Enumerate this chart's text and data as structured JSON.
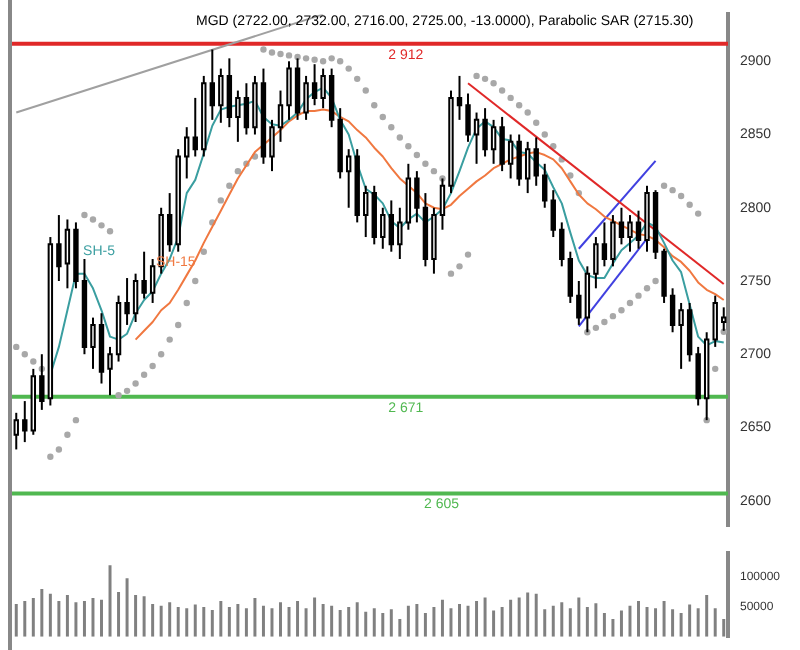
{
  "chart_data": [
    {
      "type": "candlestick",
      "title": "MGD (2722.00, 2732.00, 2716.00, 2725.00, -13.0000), Parabolic SAR (2715.30)",
      "categories": [
        null,
        null,
        null,
        null,
        null,
        null,
        null,
        null,
        null,
        null,
        null,
        null,
        null,
        null,
        null,
        null,
        null,
        null,
        null,
        null,
        null,
        null,
        null,
        null,
        null,
        null,
        null,
        null,
        null,
        null,
        null,
        null,
        null,
        null,
        null,
        null,
        null,
        null,
        null,
        null,
        null,
        null,
        null,
        null,
        null,
        null,
        null,
        null,
        null,
        null,
        null,
        null,
        null,
        null,
        null,
        null,
        null,
        null,
        null,
        null,
        null,
        null,
        null,
        null,
        null,
        null,
        null,
        null,
        null,
        null,
        null,
        null,
        null,
        null,
        null,
        null,
        null,
        null,
        null,
        null,
        null,
        null,
        null,
        null
      ],
      "ohlc": [
        [
          2645,
          2660,
          2635,
          2655
        ],
        [
          2655,
          2668,
          2640,
          2648
        ],
        [
          2648,
          2690,
          2645,
          2685
        ],
        [
          2685,
          2700,
          2662,
          2668
        ],
        [
          2670,
          2780,
          2665,
          2775
        ],
        [
          2775,
          2795,
          2750,
          2760
        ],
        [
          2762,
          2792,
          2745,
          2785
        ],
        [
          2785,
          2790,
          2745,
          2750
        ],
        [
          2750,
          2765,
          2700,
          2705
        ],
        [
          2705,
          2725,
          2690,
          2720
        ],
        [
          2720,
          2728,
          2680,
          2688
        ],
        [
          2690,
          2705,
          2672,
          2700
        ],
        [
          2700,
          2740,
          2695,
          2735
        ],
        [
          2735,
          2752,
          2720,
          2728
        ],
        [
          2728,
          2755,
          2722,
          2750
        ],
        [
          2750,
          2770,
          2738,
          2742
        ],
        [
          2742,
          2765,
          2735,
          2760
        ],
        [
          2760,
          2800,
          2755,
          2795
        ],
        [
          2795,
          2810,
          2770,
          2775
        ],
        [
          2775,
          2840,
          2770,
          2835
        ],
        [
          2835,
          2855,
          2820,
          2848
        ],
        [
          2848,
          2875,
          2835,
          2840
        ],
        [
          2840,
          2890,
          2835,
          2885
        ],
        [
          2885,
          2908,
          2860,
          2870
        ],
        [
          2870,
          2895,
          2858,
          2890
        ],
        [
          2890,
          2902,
          2855,
          2862
        ],
        [
          2862,
          2880,
          2845,
          2875
        ],
        [
          2875,
          2885,
          2850,
          2855
        ],
        [
          2855,
          2890,
          2850,
          2885
        ],
        [
          2885,
          2895,
          2830,
          2835
        ],
        [
          2835,
          2860,
          2825,
          2855
        ],
        [
          2855,
          2880,
          2845,
          2870
        ],
        [
          2870,
          2900,
          2860,
          2895
        ],
        [
          2895,
          2902,
          2860,
          2865
        ],
        [
          2865,
          2890,
          2860,
          2885
        ],
        [
          2885,
          2898,
          2870,
          2875
        ],
        [
          2875,
          2895,
          2868,
          2890
        ],
        [
          2890,
          2895,
          2855,
          2860
        ],
        [
          2860,
          2868,
          2820,
          2825
        ],
        [
          2825,
          2840,
          2800,
          2835
        ],
        [
          2835,
          2840,
          2790,
          2795
        ],
        [
          2795,
          2815,
          2780,
          2810
        ],
        [
          2810,
          2815,
          2775,
          2780
        ],
        [
          2780,
          2800,
          2772,
          2795
        ],
        [
          2795,
          2805,
          2770,
          2775
        ],
        [
          2775,
          2800,
          2765,
          2790
        ],
        [
          2790,
          2830,
          2785,
          2820
        ],
        [
          2820,
          2825,
          2790,
          2800
        ],
        [
          2800,
          2810,
          2760,
          2765
        ],
        [
          2765,
          2800,
          2755,
          2795
        ],
        [
          2795,
          2820,
          2785,
          2815
        ],
        [
          2815,
          2880,
          2810,
          2875
        ],
        [
          2875,
          2890,
          2860,
          2870
        ],
        [
          2870,
          2878,
          2845,
          2850
        ],
        [
          2850,
          2865,
          2830,
          2860
        ],
        [
          2860,
          2868,
          2835,
          2840
        ],
        [
          2840,
          2860,
          2830,
          2855
        ],
        [
          2855,
          2862,
          2825,
          2830
        ],
        [
          2830,
          2850,
          2820,
          2845
        ],
        [
          2845,
          2850,
          2815,
          2820
        ],
        [
          2820,
          2845,
          2810,
          2840
        ],
        [
          2840,
          2848,
          2815,
          2822
        ],
        [
          2822,
          2830,
          2800,
          2805
        ],
        [
          2805,
          2812,
          2780,
          2785
        ],
        [
          2785,
          2790,
          2760,
          2765
        ],
        [
          2765,
          2770,
          2735,
          2740
        ],
        [
          2740,
          2750,
          2720,
          2725
        ],
        [
          2725,
          2760,
          2715,
          2755
        ],
        [
          2755,
          2780,
          2745,
          2775
        ],
        [
          2775,
          2790,
          2760,
          2765
        ],
        [
          2765,
          2795,
          2760,
          2790
        ],
        [
          2790,
          2800,
          2775,
          2780
        ],
        [
          2780,
          2795,
          2770,
          2790
        ],
        [
          2790,
          2798,
          2772,
          2778
        ],
        [
          2778,
          2815,
          2770,
          2810
        ],
        [
          2810,
          2812,
          2765,
          2770
        ],
        [
          2770,
          2772,
          2735,
          2740
        ],
        [
          2740,
          2745,
          2715,
          2720
        ],
        [
          2720,
          2735,
          2690,
          2730
        ],
        [
          2730,
          2735,
          2695,
          2700
        ],
        [
          2700,
          2705,
          2665,
          2670
        ],
        [
          2670,
          2715,
          2655,
          2710
        ],
        [
          2710,
          2740,
          2705,
          2735
        ],
        [
          2722,
          2732,
          2716,
          2725
        ]
      ],
      "series": [
        {
          "type": "line",
          "name": "SH-5",
          "color": "#3a9ea0",
          "values": [
            null,
            null,
            null,
            null,
            2686,
            2705,
            2730,
            2755,
            2755,
            2745,
            2730,
            2712,
            2710,
            2714,
            2728,
            2737,
            2743,
            2755,
            2765,
            2780,
            2810,
            2819,
            2837,
            2856,
            2867,
            2869,
            2870,
            2871,
            2873,
            2862,
            2857,
            2856,
            2860,
            2865,
            2874,
            2879,
            2882,
            2875,
            2860,
            2850,
            2830,
            2813,
            2809,
            2803,
            2791,
            2786,
            2792,
            2796,
            2790,
            2794,
            2799,
            2810,
            2825,
            2841,
            2854,
            2859,
            2855,
            2847,
            2846,
            2838,
            2837,
            2831,
            2826,
            2814,
            2803,
            2783,
            2764,
            2754,
            2752,
            2752,
            2762,
            2771,
            2776,
            2781,
            2790,
            2787,
            2776,
            2764,
            2756,
            2734,
            2712,
            2706,
            2709,
            2708
          ]
        },
        {
          "type": "line",
          "name": "SH-15",
          "color": "#f07840",
          "values": [
            null,
            null,
            null,
            null,
            null,
            null,
            null,
            null,
            null,
            null,
            null,
            null,
            null,
            null,
            2710,
            2716,
            2722,
            2730,
            2735,
            2744,
            2754,
            2764,
            2776,
            2787,
            2798,
            2809,
            2820,
            2829,
            2838,
            2843,
            2848,
            2853,
            2859,
            2863,
            2866,
            2866,
            2867,
            2866,
            2862,
            2859,
            2853,
            2848,
            2841,
            2835,
            2827,
            2820,
            2815,
            2810,
            2803,
            2800,
            2799,
            2802,
            2808,
            2813,
            2818,
            2822,
            2827,
            2830,
            2833,
            2835,
            2837,
            2838,
            2836,
            2833,
            2827,
            2818,
            2809,
            2803,
            2799,
            2794,
            2791,
            2788,
            2785,
            2782,
            2781,
            2778,
            2773,
            2767,
            2763,
            2757,
            2749,
            2744,
            2741,
            2737
          ]
        },
        {
          "type": "scatter",
          "color": "#a8a8a8",
          "marker": "circle",
          "values": [
            2705,
            2700,
            2695,
            2690,
            2630,
            2635,
            2645,
            2655,
            2795,
            2792,
            2788,
            2784,
            2672,
            2675,
            2680,
            2686,
            2692,
            2700,
            2710,
            2720,
            2735,
            2750,
            2770,
            2790,
            2805,
            2815,
            2825,
            2830,
            2835,
            2908,
            2906,
            2905,
            2904,
            2903,
            2902,
            2901,
            2900,
            2902,
            2900,
            2895,
            2888,
            2880,
            2870,
            2862,
            2855,
            2848,
            2842,
            2836,
            2830,
            2825,
            2820,
            2755,
            2760,
            2768,
            2890,
            2888,
            2885,
            2880,
            2875,
            2870,
            2865,
            2858,
            2850,
            2842,
            2833,
            2822,
            2810,
            2715,
            2718,
            2722,
            2726,
            2730,
            2735,
            2740,
            2745,
            2750,
            2815,
            2812,
            2808,
            2802,
            2796,
            2655,
            2690,
            2715.3
          ]
        },
        {
          "type": "line",
          "color": "#a0a0a0",
          "values": [
            2865,
            null,
            null,
            null,
            null,
            null,
            null,
            null,
            null,
            null,
            null,
            null,
            null,
            null,
            null,
            null,
            null,
            null,
            null,
            null,
            null,
            null,
            null,
            null,
            null,
            null,
            null,
            null,
            null,
            null,
            null,
            null,
            null,
            null,
            null,
            null,
            2932,
            null,
            null,
            null,
            null,
            null,
            null,
            null,
            null,
            null,
            null,
            null,
            null,
            null,
            null,
            null,
            null,
            null,
            null,
            null,
            null,
            null,
            null,
            null,
            null,
            null,
            null,
            null,
            null,
            null,
            null,
            null,
            null,
            null,
            null,
            null,
            null,
            null,
            null,
            null,
            null,
            null,
            null,
            null,
            null,
            null,
            null,
            null
          ]
        },
        {
          "type": "line",
          "color": "#e02828",
          "values": [
            null,
            null,
            null,
            null,
            null,
            null,
            null,
            null,
            null,
            null,
            null,
            null,
            null,
            null,
            null,
            null,
            null,
            null,
            null,
            null,
            null,
            null,
            null,
            null,
            null,
            null,
            null,
            null,
            null,
            null,
            null,
            null,
            null,
            null,
            null,
            null,
            null,
            null,
            null,
            null,
            null,
            null,
            null,
            null,
            null,
            null,
            null,
            null,
            null,
            null,
            null,
            null,
            null,
            2885,
            null,
            null,
            null,
            null,
            null,
            null,
            null,
            null,
            null,
            null,
            null,
            null,
            null,
            null,
            null,
            null,
            null,
            null,
            null,
            null,
            null,
            null,
            null,
            null,
            null,
            null,
            null,
            null,
            null,
            2748
          ]
        },
        {
          "type": "line",
          "color": "#4040e0",
          "values": [
            null,
            null,
            null,
            null,
            null,
            null,
            null,
            null,
            null,
            null,
            null,
            null,
            null,
            null,
            null,
            null,
            null,
            null,
            null,
            null,
            null,
            null,
            null,
            null,
            null,
            null,
            null,
            null,
            null,
            null,
            null,
            null,
            null,
            null,
            null,
            null,
            null,
            null,
            null,
            null,
            null,
            null,
            null,
            null,
            null,
            null,
            null,
            null,
            null,
            null,
            null,
            null,
            null,
            null,
            null,
            null,
            null,
            null,
            null,
            null,
            null,
            null,
            null,
            null,
            null,
            null,
            2772,
            null,
            null,
            null,
            null,
            null,
            null,
            null,
            null,
            2832,
            null,
            null,
            null,
            null,
            null,
            null,
            null,
            null
          ]
        },
        {
          "type": "line",
          "color": "#4040e0",
          "values": [
            null,
            null,
            null,
            null,
            null,
            null,
            null,
            null,
            null,
            null,
            null,
            null,
            null,
            null,
            null,
            null,
            null,
            null,
            null,
            null,
            null,
            null,
            null,
            null,
            null,
            null,
            null,
            null,
            null,
            null,
            null,
            null,
            null,
            null,
            null,
            null,
            null,
            null,
            null,
            null,
            null,
            null,
            null,
            null,
            null,
            null,
            null,
            null,
            null,
            null,
            null,
            null,
            null,
            null,
            null,
            null,
            null,
            null,
            null,
            null,
            null,
            null,
            null,
            null,
            null,
            null,
            2719,
            null,
            null,
            null,
            null,
            null,
            null,
            null,
            2779,
            null,
            null,
            null,
            null,
            null,
            null,
            null,
            null,
            null
          ]
        }
      ],
      "ylim": [
        2583,
        2932
      ],
      "yticks": [
        2600,
        2650,
        2700,
        2750,
        2800,
        2850,
        2900
      ],
      "ref_lines": [
        {
          "axis": "y",
          "value": 2912,
          "label": "2 912",
          "color": "#e02828"
        },
        {
          "axis": "y",
          "value": 2671,
          "label": "2 671",
          "color": "#50b850"
        },
        {
          "axis": "y",
          "value": 2605,
          "label": "2 605",
          "color": "#50b850"
        }
      ],
      "grid": false,
      "legend": false
    },
    {
      "type": "bar",
      "categories": [
        null,
        null,
        null,
        null,
        null,
        null,
        null,
        null,
        null,
        null,
        null,
        null,
        null,
        null,
        null,
        null,
        null,
        null,
        null,
        null,
        null,
        null,
        null,
        null,
        null,
        null,
        null,
        null,
        null,
        null,
        null,
        null,
        null,
        null,
        null,
        null,
        null,
        null,
        null,
        null,
        null,
        null,
        null,
        null,
        null,
        null,
        null,
        null,
        null,
        null,
        null,
        null,
        null,
        null,
        null,
        null,
        null,
        null,
        null,
        null,
        null,
        null,
        null,
        null,
        null,
        null,
        null,
        null,
        null,
        null,
        null,
        null,
        null,
        null,
        null,
        null,
        null,
        null,
        null,
        null,
        null,
        null,
        null,
        null
      ],
      "color": "#808080",
      "values": [
        55000,
        60000,
        65000,
        80000,
        72000,
        60000,
        70000,
        58000,
        60000,
        65000,
        62000,
        120000,
        75000,
        98000,
        70000,
        68000,
        55000,
        52000,
        58000,
        50000,
        48000,
        54000,
        50000,
        45000,
        60000,
        50000,
        55000,
        48000,
        65000,
        52000,
        48000,
        58000,
        50000,
        60000,
        48000,
        66000,
        55000,
        52000,
        45000,
        50000,
        58000,
        42000,
        48000,
        40000,
        46000,
        30000,
        52000,
        55000,
        40000,
        50000,
        62000,
        48000,
        55000,
        52000,
        60000,
        66000,
        44000,
        50000,
        62000,
        66000,
        74000,
        72000,
        46000,
        52000,
        58000,
        48000,
        66000,
        50000,
        56000,
        40000,
        30000,
        44000,
        52000,
        60000,
        50000,
        48000,
        60000,
        46000,
        40000,
        54000,
        48000,
        70000,
        48000,
        30000
      ],
      "ylim": [
        0,
        140000
      ],
      "yticks": [
        50000,
        100000
      ],
      "grid": false,
      "legend": false
    }
  ]
}
